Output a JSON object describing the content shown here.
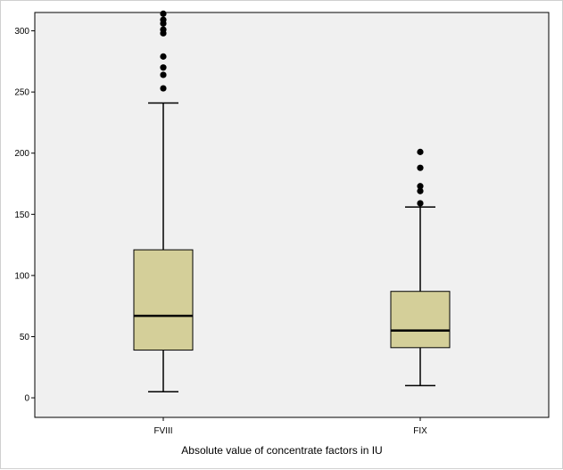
{
  "chart_data": {
    "type": "boxplot",
    "title": "",
    "xlabel": "Absolute value of concentrate factors in IU",
    "ylabel": "",
    "ylim": [
      -16,
      315
    ],
    "yticks": [
      0,
      50,
      100,
      150,
      200,
      250,
      300
    ],
    "grid": false,
    "plot_background": "#f0f0f0",
    "box_color": "#d4cf99",
    "categories": [
      "FVIII",
      "FIX"
    ],
    "series": [
      {
        "category": "FVIII",
        "min": 5,
        "q1": 39,
        "median": 67,
        "q3": 121,
        "max": 241,
        "outliers": [
          253,
          264,
          270,
          279,
          298,
          301,
          306,
          309,
          314
        ]
      },
      {
        "category": "FIX",
        "min": 10,
        "q1": 41,
        "median": 55,
        "q3": 87,
        "max": 156,
        "outliers": [
          159,
          169,
          173,
          188,
          201
        ]
      }
    ]
  }
}
